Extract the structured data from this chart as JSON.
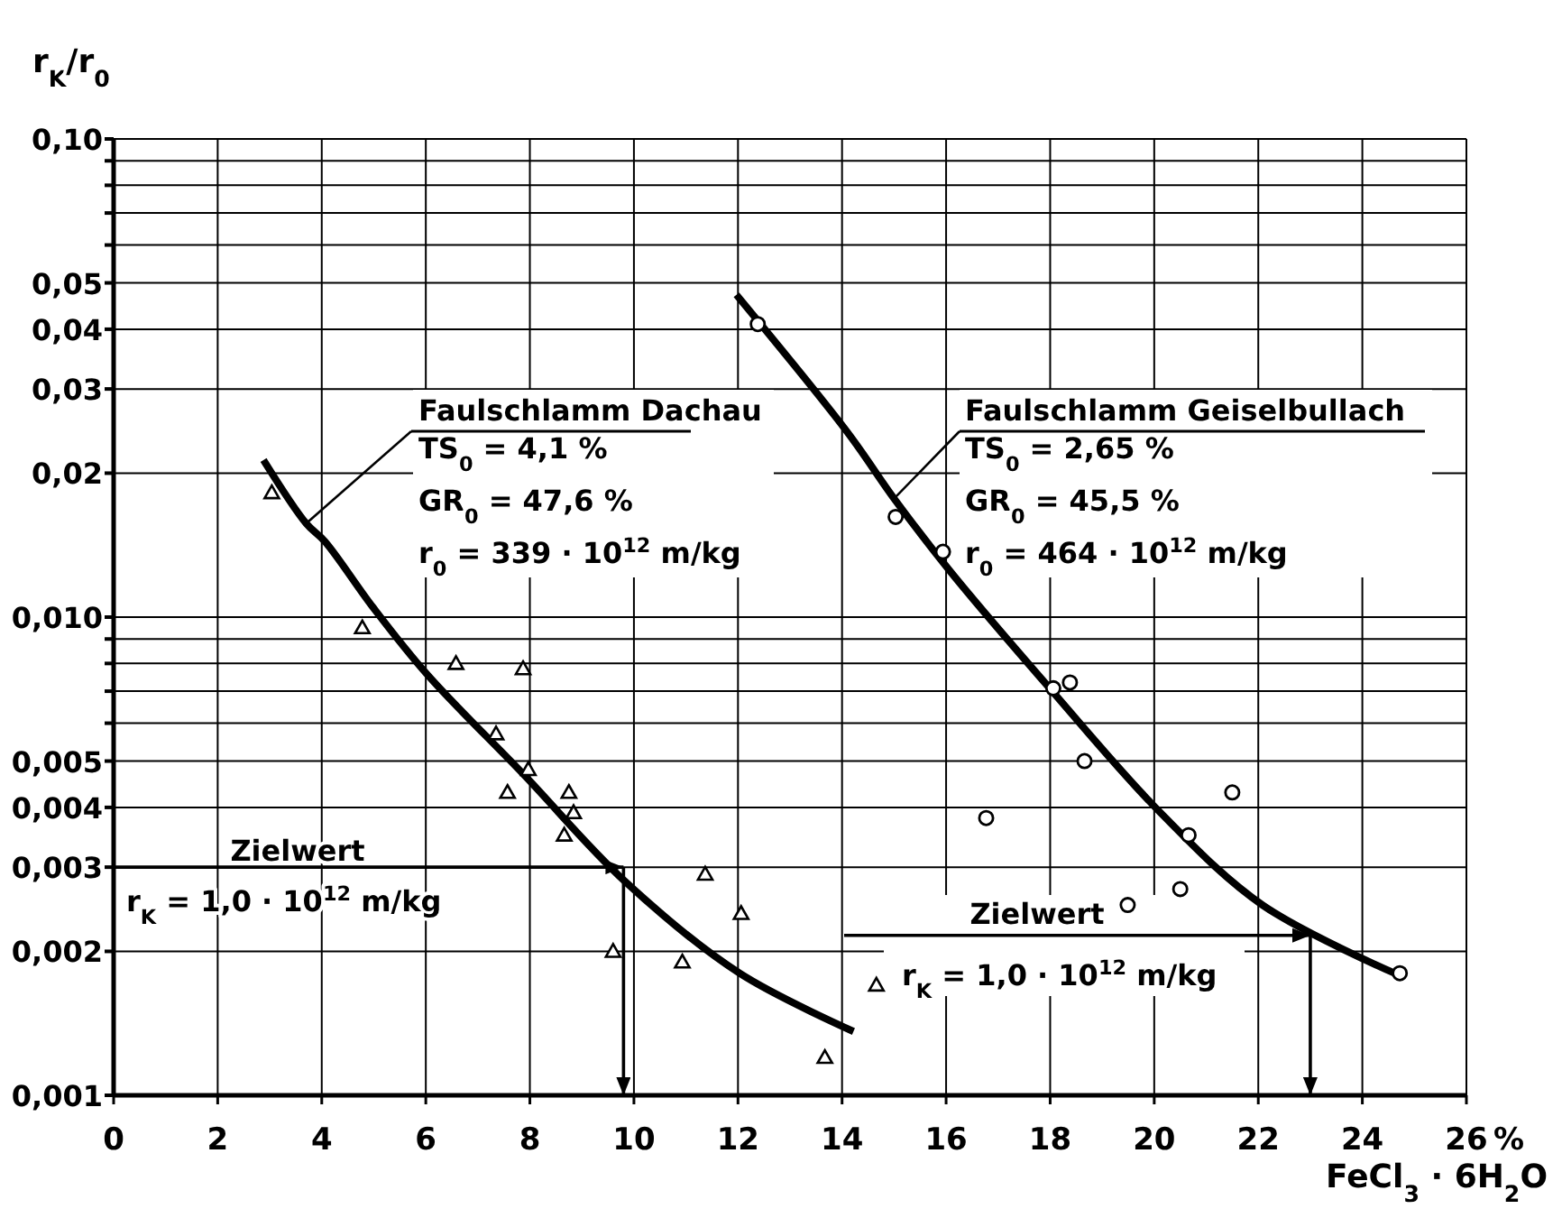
{
  "chart_data": {
    "type": "scatter",
    "xlabel": "FeCl$_{3}$ · 6H$_{2}$O",
    "ylabel": "r$_{K}$/r$_{0}$",
    "log": "y",
    "grid": true,
    "xlim": [
      0,
      26
    ],
    "xticks": [
      0,
      2,
      4,
      6,
      8,
      10,
      12,
      14,
      16,
      18,
      20,
      22,
      24,
      26
    ],
    "ylim": [
      0.001,
      0.1
    ],
    "yticks": [
      {
        "value": 0.001,
        "label": "0,001"
      },
      {
        "value": 0.002,
        "label": "0,002"
      },
      {
        "value": 0.003,
        "label": "0,003"
      },
      {
        "value": 0.004,
        "label": "0,004"
      },
      {
        "value": 0.005,
        "label": "0,005"
      },
      {
        "value": 0.006,
        "label": null
      },
      {
        "value": 0.007,
        "label": null
      },
      {
        "value": 0.008,
        "label": null
      },
      {
        "value": 0.009,
        "label": null
      },
      {
        "value": 0.01,
        "label": "0,010"
      },
      {
        "value": 0.02,
        "label": "0,02"
      },
      {
        "value": 0.03,
        "label": "0,03"
      },
      {
        "value": 0.04,
        "label": "0,04"
      },
      {
        "value": 0.05,
        "label": "0,05"
      },
      {
        "value": 0.06,
        "label": null
      },
      {
        "value": 0.07,
        "label": null
      },
      {
        "value": 0.08,
        "label": null
      },
      {
        "value": 0.09,
        "label": null
      },
      {
        "value": 0.1,
        "label": "0,10"
      }
    ],
    "series": [
      {
        "type": "scatter",
        "marker": "triangle",
        "color": "#000000",
        "x": [
          3.04,
          4.78,
          6.58,
          7.87,
          7.35,
          7.97,
          7.57,
          8.75,
          8.84,
          8.66,
          11.37,
          12.06,
          9.6,
          10.93,
          13.67,
          14.66
        ],
        "values": [
          0.0182,
          0.0095,
          0.008,
          0.0078,
          0.0057,
          0.0048,
          0.0043,
          0.0043,
          0.0039,
          0.0035,
          0.0029,
          0.0024,
          0.002,
          0.0019,
          0.0012,
          0.0017
        ]
      },
      {
        "type": "line",
        "name": "Faulschlamm Dachau",
        "marker": "none",
        "color": "#000000",
        "x": [
          2.88,
          3.7,
          4.06,
          4.98,
          6.02,
          7.87,
          9.83,
          12.03,
          14.22
        ],
        "values": [
          0.0213,
          0.0157,
          0.0144,
          0.0105,
          0.0076,
          0.0047,
          0.0028,
          0.0018,
          0.00136
        ]
      },
      {
        "type": "scatter",
        "marker": "circle",
        "color": "#000000",
        "x": [
          12.38,
          15.03,
          15.94,
          18.06,
          18.38,
          18.66,
          16.77,
          21.5,
          20.66,
          20.5,
          19.49,
          24.72
        ],
        "values": [
          0.041,
          0.0162,
          0.0137,
          0.0071,
          0.0073,
          0.005,
          0.0038,
          0.0043,
          0.0035,
          0.0027,
          0.0025,
          0.0018
        ]
      },
      {
        "type": "line",
        "name": "Faulschlamm Geiselbullach",
        "marker": "none",
        "color": "#000000",
        "x": [
          11.97,
          14.11,
          15.0,
          16.07,
          18.04,
          20.12,
          22.08,
          24.62
        ],
        "values": [
          0.0472,
          0.0243,
          0.0177,
          0.0125,
          0.007,
          0.0039,
          0.0025,
          0.0018
        ]
      }
    ],
    "ref_lines": [
      {
        "axis": "y",
        "value": 0.003,
        "label": "Zielwert"
      },
      {
        "axis": "x",
        "value": 9.8
      },
      {
        "axis": "y",
        "value": 0.00216,
        "label": "Zielwert"
      },
      {
        "axis": "x",
        "value": 23
      }
    ],
    "annotations": [
      "r$_{K}$ = 1,0 · 10$^{12}$ m/kg",
      "r$_{K}$ = 1,0 · 10$^{12}$ m/kg",
      {
        "text": "TS$_{0}$ = 4,1 %",
        "x": 3.7,
        "y": 0.0157
      },
      "GR$_{0}$ = 47,6 %",
      "r$_{0}$ = 339 · 10$^{12}$ m/kg",
      {
        "text": "TS$_{0}$ = 2,65 %",
        "x": 15.0,
        "y": 0.0177
      },
      "GR$_{0}$ = 45,5 %",
      "r$_{0}$ = 464 · 10$^{12}$ m/kg",
      "%"
    ]
  }
}
